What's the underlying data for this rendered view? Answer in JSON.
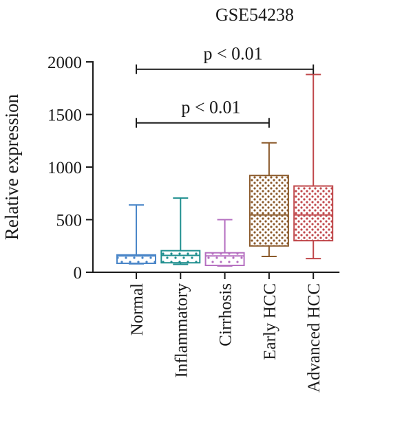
{
  "chart_data": {
    "type": "boxplot",
    "title": "GSE54238",
    "xlabel": "",
    "ylabel": "Relative expression",
    "ylim": [
      0,
      2000
    ],
    "yticks": [
      0,
      500,
      1000,
      1500,
      2000
    ],
    "categories": [
      "Normal",
      "Inflammatory",
      "Cirrhosis",
      "Early HCC",
      "Advanced HCC"
    ],
    "boxes": [
      {
        "name": "Normal",
        "min": 80,
        "q1": 85,
        "median": 155,
        "q3": 165,
        "max": 640,
        "color": "#4a86c8",
        "pattern": "dots-sparse"
      },
      {
        "name": "Inflammatory",
        "min": 75,
        "q1": 90,
        "median": 160,
        "q3": 205,
        "max": 705,
        "color": "#1f8f8f",
        "pattern": "dots-sparse"
      },
      {
        "name": "Cirrhosis",
        "min": 60,
        "q1": 65,
        "median": 155,
        "q3": 185,
        "max": 500,
        "color": "#b56fc0",
        "pattern": "dots-sparse"
      },
      {
        "name": "Early HCC",
        "min": 150,
        "q1": 250,
        "median": 545,
        "q3": 920,
        "max": 1230,
        "color": "#8b5a2b",
        "pattern": "dots-dense"
      },
      {
        "name": "Advanced HCC",
        "min": 130,
        "q1": 300,
        "median": 545,
        "q3": 820,
        "max": 1880,
        "color": "#c0474a",
        "pattern": "dots-dense"
      }
    ],
    "annotations": [
      {
        "text": "p < 0.01",
        "from": "Normal",
        "to": "Early HCC",
        "y": 1420
      },
      {
        "text": "p < 0.01",
        "from": "Normal",
        "to": "Advanced HCC",
        "y": 1930
      }
    ],
    "grid": false,
    "legend": "none"
  }
}
